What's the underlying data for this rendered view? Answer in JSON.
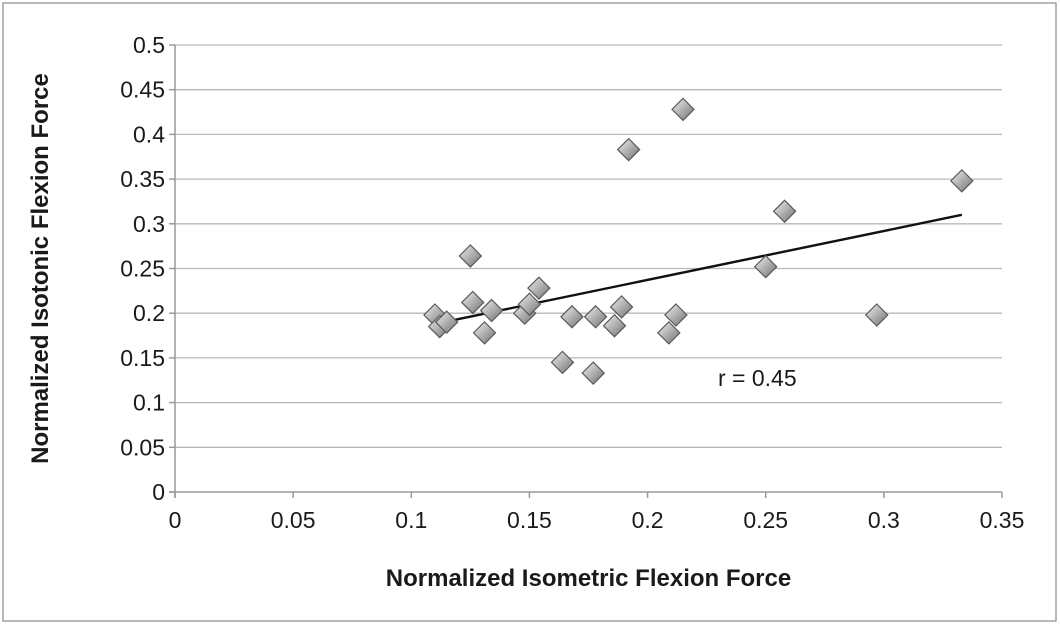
{
  "chart_data": {
    "type": "scatter",
    "title": "",
    "xlabel": "Normalized Isometric Flexion Force",
    "ylabel": "Normalized Isotonic Flexion Force",
    "xlim": [
      0,
      0.35
    ],
    "ylim": [
      0,
      0.5
    ],
    "x_ticks": [
      "0",
      "0.05",
      "0.1",
      "0.15",
      "0.2",
      "0.25",
      "0.3",
      "0.35"
    ],
    "y_ticks": [
      "0",
      "0.05",
      "0.1",
      "0.15",
      "0.2",
      "0.25",
      "0.3",
      "0.35",
      "0.4",
      "0.45",
      "0.5"
    ],
    "grid": "horizontal",
    "legend": "none",
    "marker": "diamond",
    "marker_color": "#a9a9a9",
    "points": [
      {
        "x": 0.11,
        "y": 0.198
      },
      {
        "x": 0.112,
        "y": 0.185
      },
      {
        "x": 0.115,
        "y": 0.19
      },
      {
        "x": 0.125,
        "y": 0.264
      },
      {
        "x": 0.126,
        "y": 0.212
      },
      {
        "x": 0.131,
        "y": 0.178
      },
      {
        "x": 0.134,
        "y": 0.203
      },
      {
        "x": 0.148,
        "y": 0.2
      },
      {
        "x": 0.15,
        "y": 0.21
      },
      {
        "x": 0.154,
        "y": 0.228
      },
      {
        "x": 0.164,
        "y": 0.145
      },
      {
        "x": 0.168,
        "y": 0.196
      },
      {
        "x": 0.177,
        "y": 0.133
      },
      {
        "x": 0.178,
        "y": 0.196
      },
      {
        "x": 0.186,
        "y": 0.186
      },
      {
        "x": 0.189,
        "y": 0.207
      },
      {
        "x": 0.192,
        "y": 0.383
      },
      {
        "x": 0.209,
        "y": 0.178
      },
      {
        "x": 0.212,
        "y": 0.198
      },
      {
        "x": 0.215,
        "y": 0.428
      },
      {
        "x": 0.25,
        "y": 0.252
      },
      {
        "x": 0.258,
        "y": 0.314
      },
      {
        "x": 0.297,
        "y": 0.198
      },
      {
        "x": 0.333,
        "y": 0.348
      }
    ],
    "trendline": {
      "x": [
        0.11,
        0.333
      ],
      "y": [
        0.188,
        0.31
      ]
    },
    "annotation": "r = 0.45"
  }
}
